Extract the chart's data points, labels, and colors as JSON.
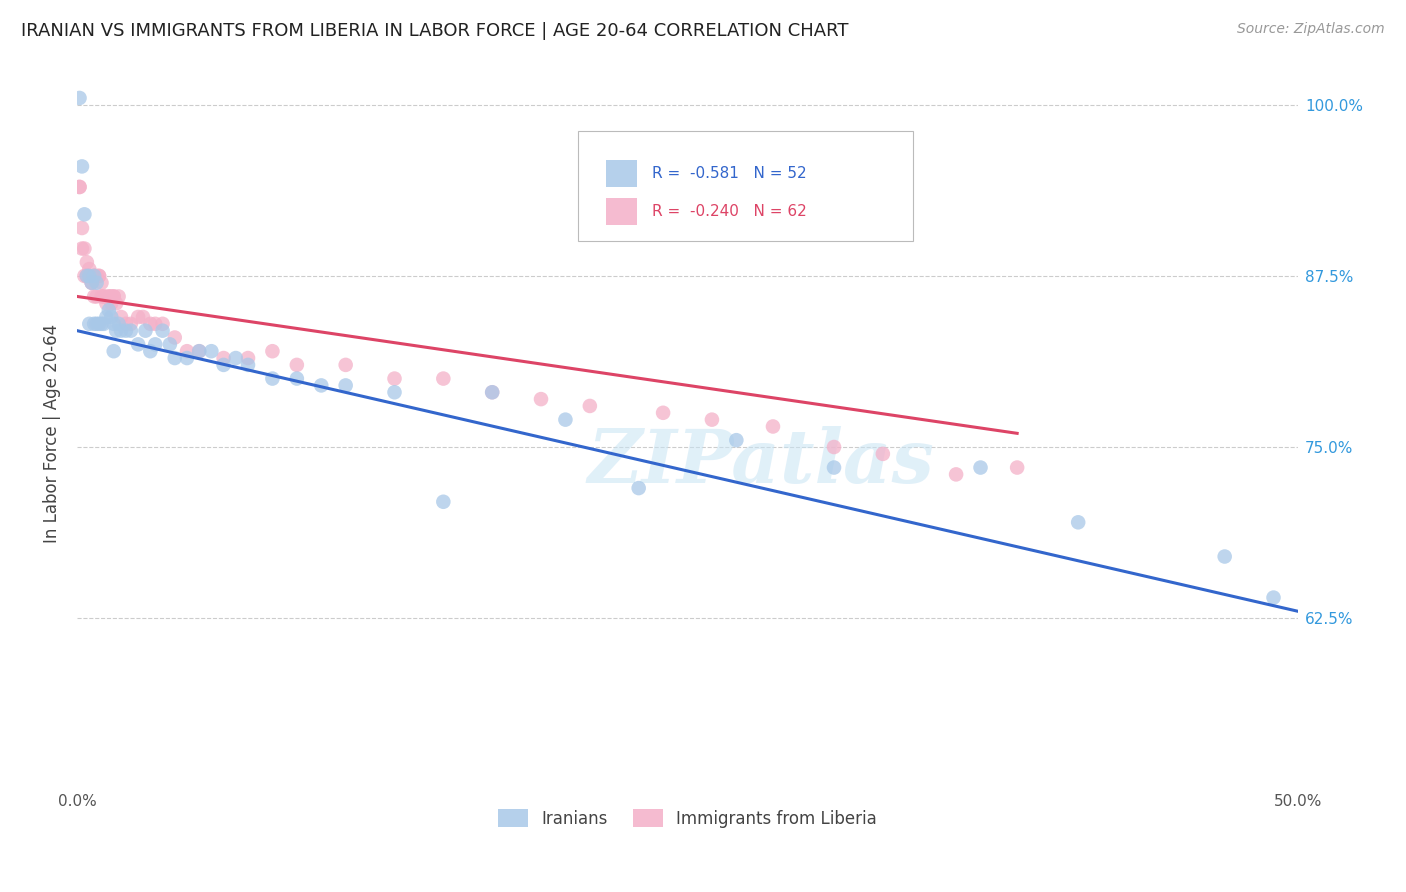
{
  "title": "IRANIAN VS IMMIGRANTS FROM LIBERIA IN LABOR FORCE | AGE 20-64 CORRELATION CHART",
  "source": "Source: ZipAtlas.com",
  "ylabel": "In Labor Force | Age 20-64",
  "x_min": 0.0,
  "x_max": 0.5,
  "y_min": 0.5,
  "y_max": 1.02,
  "x_ticks": [
    0.0,
    0.05,
    0.1,
    0.15,
    0.2,
    0.25,
    0.3,
    0.35,
    0.4,
    0.45,
    0.5
  ],
  "x_tick_labels_show": [
    "0.0%",
    "50.0%"
  ],
  "y_ticks": [
    0.625,
    0.75,
    0.875,
    1.0
  ],
  "y_tick_labels": [
    "62.5%",
    "75.0%",
    "87.5%",
    "100.0%"
  ],
  "iranians_color": "#a8c8e8",
  "liberia_color": "#f4b0c8",
  "trendline_iranian_color": "#3366cc",
  "trendline_liberia_color": "#dd4466",
  "watermark": "ZIPatlas",
  "iranians_x": [
    0.001,
    0.002,
    0.003,
    0.004,
    0.005,
    0.005,
    0.006,
    0.007,
    0.007,
    0.008,
    0.008,
    0.009,
    0.01,
    0.011,
    0.012,
    0.013,
    0.014,
    0.015,
    0.015,
    0.016,
    0.017,
    0.018,
    0.02,
    0.022,
    0.025,
    0.028,
    0.03,
    0.032,
    0.035,
    0.038,
    0.04,
    0.045,
    0.05,
    0.055,
    0.06,
    0.065,
    0.07,
    0.08,
    0.09,
    0.1,
    0.11,
    0.13,
    0.15,
    0.17,
    0.2,
    0.23,
    0.27,
    0.31,
    0.37,
    0.41,
    0.47,
    0.49
  ],
  "iranians_y": [
    1.005,
    0.955,
    0.92,
    0.875,
    0.875,
    0.84,
    0.87,
    0.875,
    0.84,
    0.87,
    0.84,
    0.84,
    0.84,
    0.84,
    0.845,
    0.85,
    0.845,
    0.84,
    0.82,
    0.835,
    0.84,
    0.835,
    0.835,
    0.835,
    0.825,
    0.835,
    0.82,
    0.825,
    0.835,
    0.825,
    0.815,
    0.815,
    0.82,
    0.82,
    0.81,
    0.815,
    0.81,
    0.8,
    0.8,
    0.795,
    0.795,
    0.79,
    0.71,
    0.79,
    0.77,
    0.72,
    0.755,
    0.735,
    0.735,
    0.695,
    0.67,
    0.64
  ],
  "liberia_x": [
    0.001,
    0.001,
    0.002,
    0.002,
    0.003,
    0.003,
    0.004,
    0.004,
    0.004,
    0.005,
    0.005,
    0.005,
    0.006,
    0.006,
    0.007,
    0.007,
    0.007,
    0.008,
    0.008,
    0.009,
    0.009,
    0.01,
    0.01,
    0.011,
    0.011,
    0.012,
    0.013,
    0.013,
    0.014,
    0.014,
    0.015,
    0.015,
    0.016,
    0.017,
    0.018,
    0.02,
    0.022,
    0.025,
    0.027,
    0.03,
    0.032,
    0.035,
    0.04,
    0.045,
    0.05,
    0.06,
    0.07,
    0.08,
    0.09,
    0.11,
    0.13,
    0.15,
    0.17,
    0.19,
    0.21,
    0.24,
    0.26,
    0.285,
    0.31,
    0.33,
    0.36,
    0.385
  ],
  "liberia_y": [
    0.94,
    0.94,
    0.91,
    0.895,
    0.895,
    0.875,
    0.885,
    0.875,
    0.875,
    0.875,
    0.875,
    0.88,
    0.87,
    0.87,
    0.875,
    0.875,
    0.86,
    0.875,
    0.86,
    0.875,
    0.875,
    0.87,
    0.86,
    0.86,
    0.86,
    0.855,
    0.86,
    0.86,
    0.86,
    0.855,
    0.86,
    0.86,
    0.855,
    0.86,
    0.845,
    0.84,
    0.84,
    0.845,
    0.845,
    0.84,
    0.84,
    0.84,
    0.83,
    0.82,
    0.82,
    0.815,
    0.815,
    0.82,
    0.81,
    0.81,
    0.8,
    0.8,
    0.79,
    0.785,
    0.78,
    0.775,
    0.77,
    0.765,
    0.75,
    0.745,
    0.73,
    0.735
  ],
  "iran_trend_x": [
    0.0,
    0.5
  ],
  "iran_trend_y": [
    0.835,
    0.63
  ],
  "lib_trend_x": [
    0.0,
    0.385
  ],
  "lib_trend_y": [
    0.86,
    0.76
  ]
}
